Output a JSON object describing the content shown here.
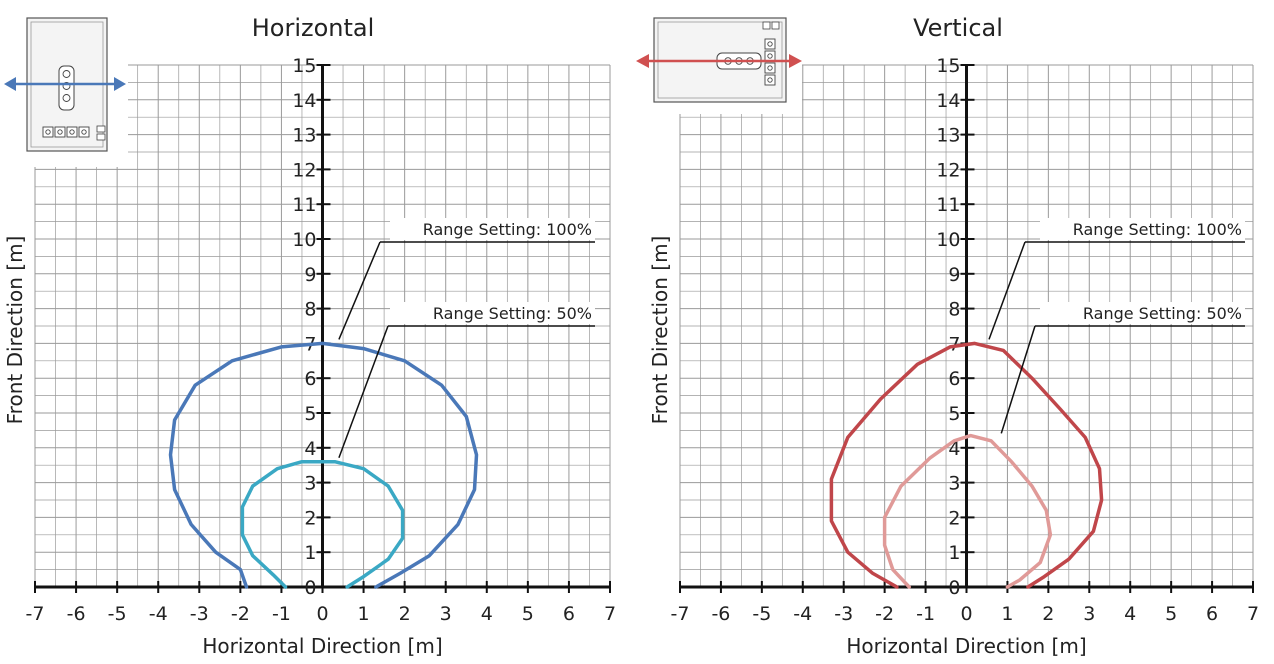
{
  "chart_data": [
    {
      "type": "line",
      "title": "Horizontal",
      "xlabel": "Horizontal Direction [m]",
      "ylabel": "Front Direction [m]",
      "xlim": [
        -7,
        7
      ],
      "ylim": [
        0,
        15
      ],
      "x_ticks": [
        "-7",
        "-6",
        "-5",
        "-4",
        "-3",
        "-2",
        "-1",
        "0",
        "1",
        "2",
        "3",
        "4",
        "5",
        "6",
        "7"
      ],
      "y_ticks": [
        "0",
        "1",
        "2",
        "3",
        "4",
        "5",
        "6",
        "7",
        "8",
        "9",
        "10",
        "11",
        "12",
        "13",
        "14",
        "15"
      ],
      "grid": true,
      "series": [
        {
          "color": "#4a78b8",
          "points": [
            [
              -1.85,
              0
            ],
            [
              -2.0,
              0.5
            ],
            [
              -2.6,
              1.0
            ],
            [
              -3.2,
              1.8
            ],
            [
              -3.6,
              2.8
            ],
            [
              -3.7,
              3.8
            ],
            [
              -3.6,
              4.8
            ],
            [
              -3.1,
              5.8
            ],
            [
              -2.2,
              6.5
            ],
            [
              -1.0,
              6.9
            ],
            [
              0.0,
              7.0
            ],
            [
              1.0,
              6.85
            ],
            [
              2.0,
              6.5
            ],
            [
              2.9,
              5.8
            ],
            [
              3.5,
              4.9
            ],
            [
              3.75,
              3.8
            ],
            [
              3.7,
              2.8
            ],
            [
              3.3,
              1.8
            ],
            [
              2.6,
              0.9
            ],
            [
              1.9,
              0.4
            ],
            [
              1.3,
              0
            ]
          ]
        },
        {
          "color": "#3aa8c4",
          "points": [
            [
              -0.9,
              0
            ],
            [
              -1.2,
              0.35
            ],
            [
              -1.7,
              0.9
            ],
            [
              -1.95,
              1.5
            ],
            [
              -1.95,
              2.3
            ],
            [
              -1.7,
              2.9
            ],
            [
              -1.1,
              3.4
            ],
            [
              -0.5,
              3.6
            ],
            [
              0.3,
              3.6
            ],
            [
              1.0,
              3.4
            ],
            [
              1.6,
              2.9
            ],
            [
              1.95,
              2.2
            ],
            [
              1.95,
              1.4
            ],
            [
              1.6,
              0.8
            ],
            [
              1.0,
              0.3
            ],
            [
              0.6,
              0
            ]
          ]
        }
      ],
      "annotations": [
        {
          "text": "Range Setting: 100%",
          "target": [
            0.4,
            7.0
          ]
        },
        {
          "text": "Range Setting: 50%",
          "target": [
            0.4,
            3.6
          ]
        }
      ]
    },
    {
      "type": "line",
      "title": "Vertical",
      "xlabel": "Horizontal Direction [m]",
      "ylabel": "Front Direction [m]",
      "xlim": [
        -7,
        7
      ],
      "ylim": [
        0,
        15
      ],
      "x_ticks": [
        "-7",
        "-6",
        "-5",
        "-4",
        "-3",
        "-2",
        "-1",
        "0",
        "1",
        "2",
        "3",
        "4",
        "5",
        "6",
        "7"
      ],
      "y_ticks": [
        "0",
        "1",
        "2",
        "3",
        "4",
        "5",
        "6",
        "7",
        "8",
        "9",
        "10",
        "11",
        "12",
        "13",
        "14",
        "15"
      ],
      "grid": true,
      "series": [
        {
          "color": "#c0464a",
          "points": [
            [
              -1.7,
              0
            ],
            [
              -2.3,
              0.4
            ],
            [
              -2.9,
              1.0
            ],
            [
              -3.3,
              1.9
            ],
            [
              -3.3,
              3.1
            ],
            [
              -2.9,
              4.3
            ],
            [
              -2.1,
              5.4
            ],
            [
              -1.2,
              6.4
            ],
            [
              -0.4,
              6.9
            ],
            [
              0.2,
              7.0
            ],
            [
              0.9,
              6.8
            ],
            [
              1.6,
              6.0
            ],
            [
              2.3,
              5.1
            ],
            [
              2.9,
              4.3
            ],
            [
              3.25,
              3.4
            ],
            [
              3.3,
              2.5
            ],
            [
              3.1,
              1.6
            ],
            [
              2.5,
              0.8
            ],
            [
              1.9,
              0.3
            ],
            [
              1.5,
              0
            ]
          ]
        },
        {
          "color": "#e09a98",
          "points": [
            [
              -1.4,
              0
            ],
            [
              -1.8,
              0.5
            ],
            [
              -2.0,
              1.2
            ],
            [
              -2.0,
              2.0
            ],
            [
              -1.6,
              2.9
            ],
            [
              -0.9,
              3.7
            ],
            [
              -0.3,
              4.2
            ],
            [
              0.1,
              4.35
            ],
            [
              0.6,
              4.2
            ],
            [
              1.1,
              3.6
            ],
            [
              1.6,
              2.9
            ],
            [
              1.95,
              2.2
            ],
            [
              2.05,
              1.5
            ],
            [
              1.8,
              0.7
            ],
            [
              1.3,
              0.2
            ],
            [
              1.0,
              0
            ]
          ]
        }
      ],
      "annotations": [
        {
          "text": "Range Setting: 100%",
          "target": [
            0.55,
            7.0
          ]
        },
        {
          "text": "Range Setting: 50%",
          "target": [
            0.85,
            4.3
          ]
        }
      ]
    }
  ],
  "icons": [
    "sensor-horizontal-orientation-icon",
    "sensor-vertical-orientation-icon"
  ],
  "colors": {
    "axis": "#111111",
    "grid": "#9a9a9a",
    "arrow_horizontal": "#4a78b8",
    "arrow_vertical": "#d05050"
  }
}
